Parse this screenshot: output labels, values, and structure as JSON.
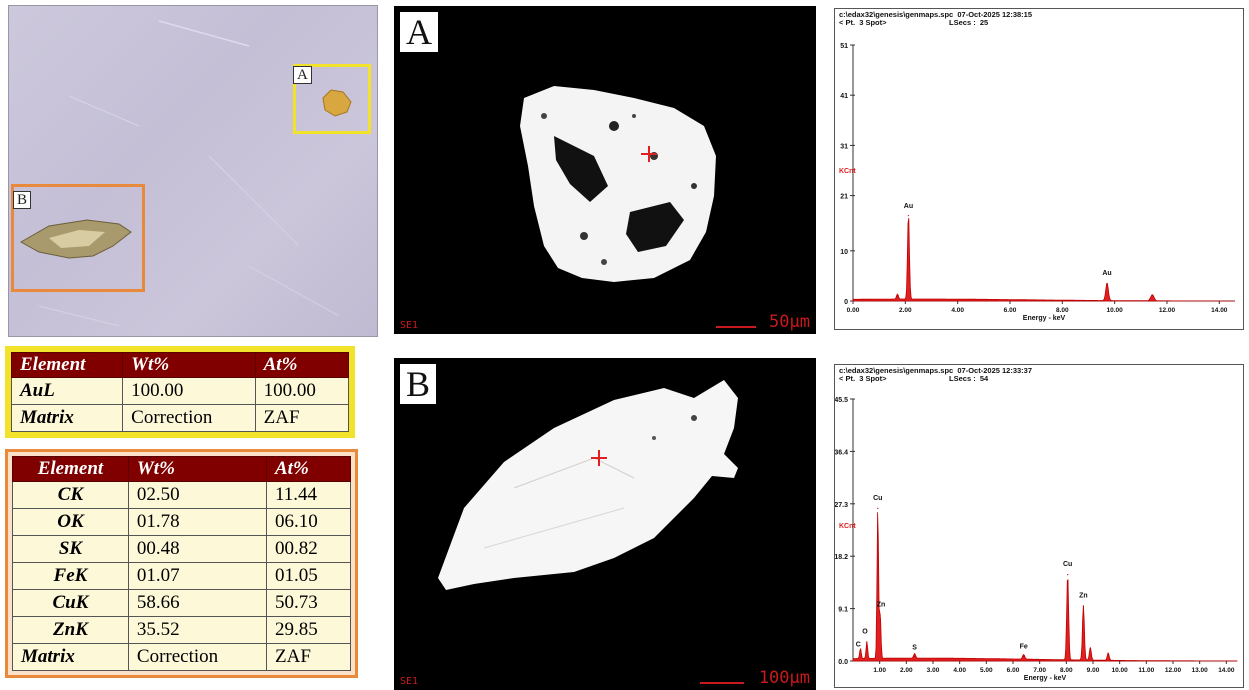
{
  "optical": {
    "label_a": "A",
    "label_b": "B",
    "box_a_color": "#f2e22a",
    "box_b_color": "#e8893c"
  },
  "table_a": {
    "headers": [
      "Element",
      "Wt%",
      "At%"
    ],
    "rows": [
      [
        "AuL",
        "100.00",
        "100.00"
      ],
      [
        "Matrix",
        "Correction",
        "ZAF"
      ]
    ]
  },
  "table_b": {
    "headers": [
      "Element",
      "Wt%",
      "At%"
    ],
    "rows": [
      [
        "CK",
        "02.50",
        "11.44"
      ],
      [
        "OK",
        "01.78",
        "06.10"
      ],
      [
        "SK",
        "00.48",
        "00.82"
      ],
      [
        "FeK",
        "01.07",
        "01.05"
      ],
      [
        "CuK",
        "58.66",
        "50.73"
      ],
      [
        "ZnK",
        "35.52",
        "29.85"
      ],
      [
        "Matrix",
        "Correction",
        "ZAF"
      ]
    ]
  },
  "sem_a": {
    "letter": "A",
    "detector": "SE1",
    "scale": "50μm"
  },
  "sem_b": {
    "letter": "B",
    "detector": "SE1",
    "scale": "100μm"
  },
  "chart_data": [
    {
      "type": "line",
      "header_line1": "c:\\edax32\\genesis\\genmaps.spc  07-Oct-2025 12:38:15",
      "header_line2a": "< Pt.  3 Spot>",
      "header_line2b": "LSecs :  25",
      "ylabel": "KCnt",
      "xlabel": "Energy - keV",
      "xlim": [
        0,
        14.6
      ],
      "ylim": [
        0,
        51
      ],
      "xticks": [
        "0.00",
        "2.00",
        "4.00",
        "6.00",
        "8.00",
        "10.00",
        "12.00",
        "14.00"
      ],
      "xtick_values": [
        0,
        2,
        4,
        6,
        8,
        10,
        12,
        14
      ],
      "yticks": [
        "0",
        "10",
        "21",
        "31",
        "41",
        "51"
      ],
      "ytick_values": [
        0,
        10,
        21,
        31,
        41,
        51
      ],
      "peaks": [
        {
          "x": 1.7,
          "y": 1.0,
          "w": 0.05
        },
        {
          "x": 2.12,
          "y": 17.0,
          "w": 0.05
        },
        {
          "x": 9.71,
          "y": 3.5,
          "w": 0.07
        },
        {
          "x": 11.44,
          "y": 1.2,
          "w": 0.09
        }
      ],
      "background": 0.4,
      "annotations": [
        {
          "text": "Au",
          "x": 2.12,
          "y": 18.5
        },
        {
          "text": "Au",
          "x": 9.71,
          "y": 5.2
        }
      ]
    },
    {
      "type": "line",
      "header_line1": "c:\\edax32\\genesis\\genmaps.spc  07-Oct-2025 12:33:37",
      "header_line2a": "< Pt.  3 Spot>",
      "header_line2b": "LSecs :  54",
      "ylabel": "KCnt",
      "xlabel": "Energy - keV",
      "xlim": [
        0,
        14.4
      ],
      "ylim": [
        0,
        45.5
      ],
      "xticks": [
        "1.00",
        "2.00",
        "3.00",
        "4.00",
        "5.00",
        "6.00",
        "7.00",
        "8.00",
        "9.00",
        "10.00",
        "11.00",
        "12.00",
        "13.00",
        "14.00"
      ],
      "xtick_values": [
        1,
        2,
        3,
        4,
        5,
        6,
        7,
        8,
        9,
        10,
        11,
        12,
        13,
        14
      ],
      "yticks": [
        "0.0",
        "9.1",
        "18.2",
        "27.3",
        "36.4",
        "45.5"
      ],
      "ytick_values": [
        0,
        9.1,
        18.2,
        27.3,
        36.4,
        45.5
      ],
      "peaks": [
        {
          "x": 0.28,
          "y": 1.8,
          "w": 0.04
        },
        {
          "x": 0.52,
          "y": 3.0,
          "w": 0.04
        },
        {
          "x": 0.93,
          "y": 26.5,
          "w": 0.04
        },
        {
          "x": 1.02,
          "y": 8.0,
          "w": 0.04
        },
        {
          "x": 2.31,
          "y": 0.8,
          "w": 0.05
        },
        {
          "x": 6.4,
          "y": 0.8,
          "w": 0.06
        },
        {
          "x": 8.05,
          "y": 15.0,
          "w": 0.05
        },
        {
          "x": 8.64,
          "y": 9.5,
          "w": 0.05
        },
        {
          "x": 8.9,
          "y": 2.2,
          "w": 0.05
        },
        {
          "x": 9.57,
          "y": 1.3,
          "w": 0.05
        }
      ],
      "background": 0.5,
      "annotations": [
        {
          "text": "C",
          "x": 0.2,
          "y": 2.5
        },
        {
          "text": "O",
          "x": 0.45,
          "y": 4.8
        },
        {
          "text": "Cu",
          "x": 0.93,
          "y": 28.0
        },
        {
          "text": "Zn",
          "x": 1.05,
          "y": 9.5
        },
        {
          "text": "S",
          "x": 2.31,
          "y": 2.0
        },
        {
          "text": "Fe",
          "x": 6.4,
          "y": 2.2
        },
        {
          "text": "Cu",
          "x": 8.05,
          "y": 16.5
        },
        {
          "text": "Zn",
          "x": 8.64,
          "y": 11.0
        }
      ]
    }
  ]
}
